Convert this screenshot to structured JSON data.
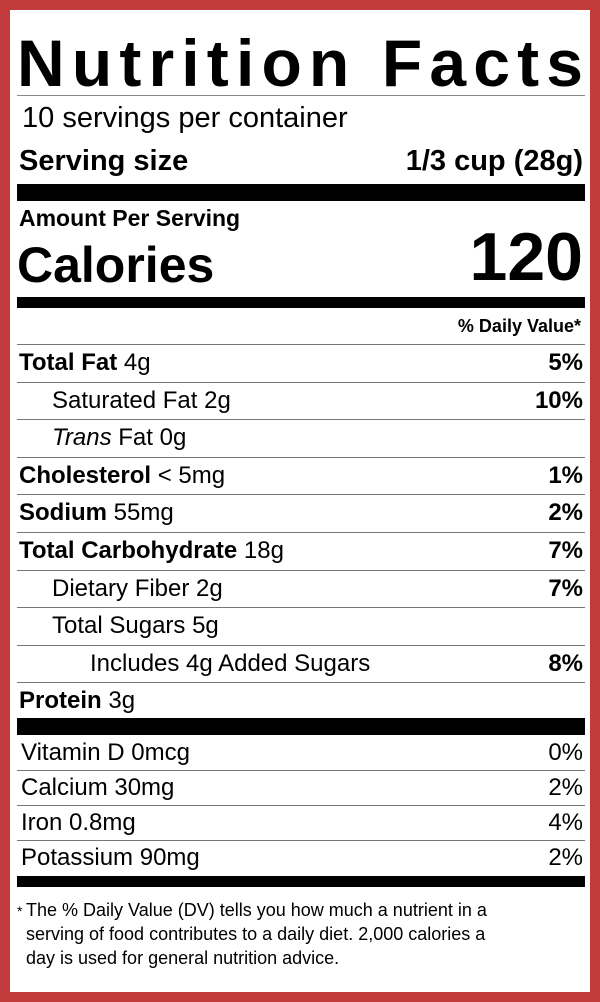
{
  "header": {
    "title": "Nutrition Facts",
    "servings": "10 servings per container",
    "serving_size_label": "Serving size",
    "serving_size_value": "1/3 cup (28g)"
  },
  "calories": {
    "amount_per_serving": "Amount Per Serving",
    "label": "Calories",
    "value": "120"
  },
  "daily_value_header": "% Daily Value*",
  "nutrients": [
    {
      "name": "Total Fat",
      "amount": "4g",
      "dv": "5%",
      "level": 0
    },
    {
      "name": "Saturated Fat",
      "amount": "2g",
      "dv": "10%",
      "level": 1
    },
    {
      "name_italic": "Trans",
      "name": "Fat",
      "amount": "0g",
      "level": 1
    },
    {
      "name": "Cholesterol",
      "amount": "< 5mg",
      "dv": "1%",
      "level": 0
    },
    {
      "name": "Sodium",
      "amount": "55mg",
      "dv": "2%",
      "level": 0
    },
    {
      "name": "Total Carbohydrate",
      "amount": "18g",
      "dv": "7%",
      "level": 0
    },
    {
      "name": "Dietary Fiber",
      "amount": "2g",
      "dv": "7%",
      "level": 1
    },
    {
      "name": "Total Sugars",
      "amount": "5g",
      "level": 1
    },
    {
      "name": "Includes 4g Added Sugars",
      "dv": "8%",
      "level": 2
    },
    {
      "name": "Protein",
      "amount": "3g",
      "level": 0
    }
  ],
  "vitamins": [
    {
      "name": "Vitamin D",
      "amount": "0mcg",
      "dv": "0%"
    },
    {
      "name": "Calcium",
      "amount": "30mg",
      "dv": "2%"
    },
    {
      "name": "Iron",
      "amount": "0.8mg",
      "dv": "4%"
    },
    {
      "name": "Potassium",
      "amount": "90mg",
      "dv": "2%"
    }
  ],
  "footnote": {
    "mark": "*",
    "lines": [
      "The % Daily Value (DV) tells you how much a nutrient in a",
      "serving of food contributes to a daily diet. 2,000 calories a",
      "day is used for general nutrition advice."
    ]
  }
}
